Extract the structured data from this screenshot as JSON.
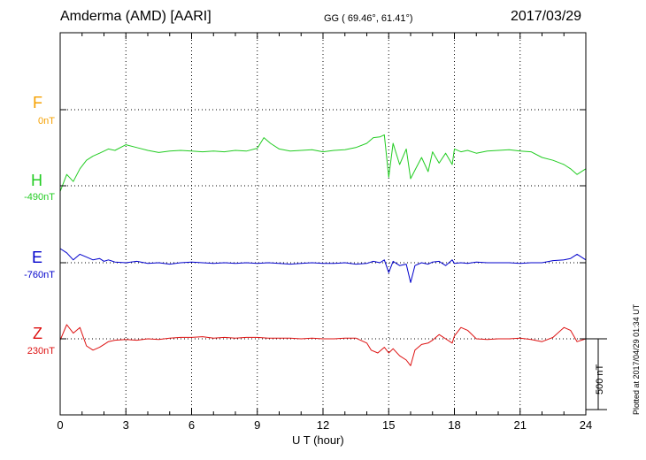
{
  "header": {
    "station": "Amderma (AMD)  [AARI]",
    "coordinates": "GG ( 69.46°,  61.41°)",
    "date": "2017/03/29"
  },
  "components": [
    {
      "letter": "F",
      "offset": "0nT",
      "color": "#f5a000"
    },
    {
      "letter": "H",
      "offset": "-490nT",
      "color": "#22cc22"
    },
    {
      "letter": "E",
      "offset": "-760nT",
      "color": "#0000cc"
    },
    {
      "letter": "Z",
      "offset": "230nT",
      "color": "#dd1111"
    }
  ],
  "scale_bar": {
    "label": "500 nT",
    "value_nT": 500
  },
  "plotted_note": "Plotted at 2017/04/29 01:34 UT",
  "chart_data": {
    "type": "line",
    "xlabel": "U T (hour)",
    "xlim": [
      0,
      24
    ],
    "x_ticks": [
      "0",
      "3",
      "6",
      "9",
      "12",
      "15",
      "18",
      "21",
      "24"
    ],
    "grid": true,
    "units": "nT",
    "series": [
      {
        "name": "H",
        "color": "#22cc22",
        "x": [
          0,
          0.3,
          0.6,
          0.9,
          1.2,
          1.5,
          1.8,
          2.0,
          2.2,
          2.5,
          3.0,
          3.5,
          4.0,
          4.5,
          5.0,
          5.5,
          6.0,
          6.5,
          7.0,
          7.5,
          8.0,
          8.5,
          9.0,
          9.3,
          9.6,
          10.0,
          10.5,
          11.0,
          11.5,
          12.0,
          12.5,
          13.0,
          13.5,
          14.0,
          14.3,
          14.6,
          14.8,
          15.0,
          15.2,
          15.5,
          15.8,
          16.0,
          16.2,
          16.5,
          16.8,
          17.0,
          17.3,
          17.6,
          17.9,
          18.0,
          18.3,
          18.6,
          19.0,
          19.5,
          20.0,
          20.5,
          21.0,
          21.5,
          22.0,
          22.5,
          23.0,
          23.3,
          23.6,
          24.0
        ],
        "values": [
          -40,
          80,
          30,
          120,
          180,
          210,
          230,
          245,
          260,
          250,
          290,
          270,
          250,
          235,
          245,
          250,
          245,
          240,
          245,
          240,
          250,
          245,
          265,
          340,
          300,
          260,
          245,
          250,
          255,
          240,
          250,
          255,
          270,
          300,
          340,
          345,
          360,
          60,
          300,
          150,
          260,
          50,
          110,
          200,
          100,
          240,
          160,
          230,
          150,
          260,
          240,
          250,
          230,
          245,
          250,
          255,
          245,
          240,
          200,
          180,
          150,
          120,
          80,
          120
        ]
      },
      {
        "name": "E",
        "color": "#0000cc",
        "x": [
          0,
          0.3,
          0.6,
          0.9,
          1.2,
          1.5,
          1.8,
          2.0,
          2.2,
          2.5,
          3.0,
          3.5,
          4.0,
          4.5,
          5.0,
          5.5,
          6.0,
          6.5,
          7.0,
          7.5,
          8.0,
          8.5,
          9.0,
          9.5,
          10.0,
          10.5,
          11.0,
          11.5,
          12.0,
          12.5,
          13.0,
          13.5,
          14.0,
          14.3,
          14.6,
          14.8,
          15.0,
          15.2,
          15.5,
          15.8,
          16.0,
          16.2,
          16.5,
          16.8,
          17.0,
          17.3,
          17.6,
          17.9,
          18.0,
          18.3,
          18.6,
          19.0,
          19.5,
          20.0,
          20.5,
          21.0,
          21.5,
          22.0,
          22.5,
          23.0,
          23.3,
          23.6,
          24.0
        ],
        "values": [
          100,
          70,
          20,
          60,
          40,
          20,
          30,
          10,
          20,
          5,
          0,
          10,
          -5,
          0,
          -10,
          0,
          5,
          0,
          -5,
          0,
          -5,
          0,
          -5,
          0,
          -5,
          -10,
          -5,
          0,
          -5,
          -5,
          0,
          -10,
          -5,
          10,
          0,
          20,
          -70,
          10,
          -20,
          -10,
          -140,
          -20,
          0,
          -10,
          5,
          10,
          -20,
          20,
          -5,
          0,
          -5,
          5,
          0,
          0,
          0,
          -5,
          0,
          0,
          15,
          20,
          30,
          60,
          20
        ]
      },
      {
        "name": "Z",
        "color": "#dd1111",
        "x": [
          0,
          0.3,
          0.6,
          0.9,
          1.2,
          1.5,
          1.8,
          2.0,
          2.2,
          2.5,
          3.0,
          3.5,
          4.0,
          4.5,
          5.0,
          5.5,
          6.0,
          6.5,
          7.0,
          7.5,
          8.0,
          8.5,
          9.0,
          9.5,
          10.0,
          10.5,
          11.0,
          11.5,
          12.0,
          12.5,
          13.0,
          13.5,
          14.0,
          14.2,
          14.5,
          14.8,
          15.0,
          15.2,
          15.5,
          15.8,
          16.0,
          16.2,
          16.5,
          16.8,
          17.0,
          17.3,
          17.6,
          17.9,
          18.0,
          18.3,
          18.6,
          19.0,
          19.5,
          20.0,
          20.5,
          21.0,
          21.5,
          22.0,
          22.5,
          23.0,
          23.3,
          23.6,
          24.0
        ],
        "values": [
          -10,
          100,
          40,
          80,
          -50,
          -80,
          -60,
          -40,
          -20,
          -10,
          -5,
          -10,
          0,
          -5,
          5,
          10,
          10,
          15,
          5,
          10,
          5,
          10,
          10,
          5,
          5,
          5,
          0,
          5,
          0,
          0,
          5,
          5,
          -30,
          -80,
          -100,
          -60,
          -100,
          -70,
          -120,
          -150,
          -190,
          -80,
          -40,
          -30,
          -10,
          30,
          0,
          -30,
          20,
          80,
          60,
          0,
          -5,
          0,
          0,
          5,
          -5,
          -20,
          10,
          80,
          60,
          -20,
          0
        ]
      }
    ]
  }
}
